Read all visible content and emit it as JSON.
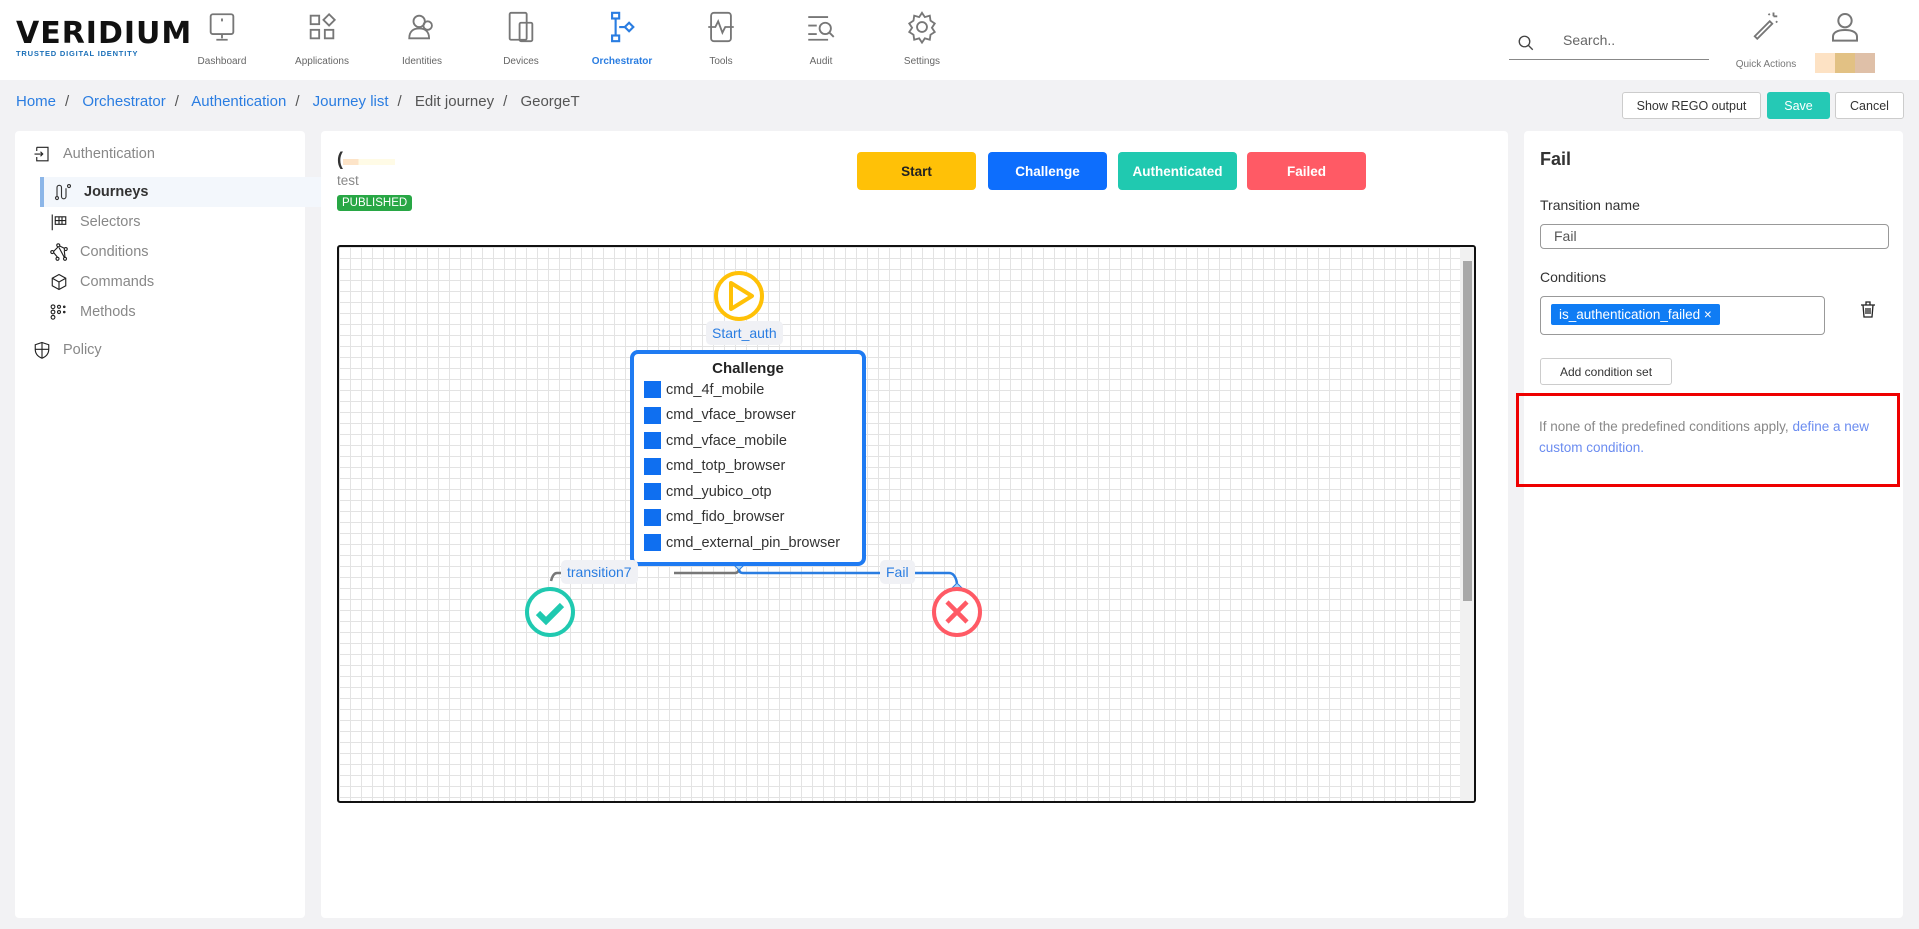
{
  "header": {
    "logo": "VERIDIUM",
    "logo_tagline": "TRUSTED DIGITAL IDENTITY",
    "nav": [
      {
        "label": "Dashboard",
        "icon": "monitor-icon"
      },
      {
        "label": "Applications",
        "icon": "apps-icon"
      },
      {
        "label": "Identities",
        "icon": "users-icon"
      },
      {
        "label": "Devices",
        "icon": "devices-icon"
      },
      {
        "label": "Orchestrator",
        "icon": "orchestrator-icon",
        "active": true
      },
      {
        "label": "Tools",
        "icon": "tools-icon"
      },
      {
        "label": "Audit",
        "icon": "audit-icon"
      },
      {
        "label": "Settings",
        "icon": "gear-icon"
      }
    ],
    "search_placeholder": "Search..",
    "quick_actions": "Quick Actions"
  },
  "breadcrumb": [
    {
      "label": "Home",
      "link": true
    },
    {
      "label": "Orchestrator",
      "link": true
    },
    {
      "label": "Authentication",
      "link": true
    },
    {
      "label": "Journey list",
      "link": true
    },
    {
      "label": "Edit journey",
      "link": false
    },
    {
      "label": "GeorgeT",
      "link": false
    }
  ],
  "actions": {
    "show_rego": "Show REGO output",
    "save": "Save",
    "cancel": "Cancel"
  },
  "sidebar": {
    "section": "Authentication",
    "items": [
      "Journeys",
      "Selectors",
      "Conditions",
      "Commands",
      "Methods"
    ],
    "active": "Journeys",
    "policy": "Policy"
  },
  "journey": {
    "name_initial": "(",
    "description": "test",
    "status": "PUBLISHED"
  },
  "states": [
    {
      "label": "Start",
      "color": "#ffc107"
    },
    {
      "label": "Challenge",
      "color": "#0d6efd"
    },
    {
      "label": "Authenticated",
      "color": "#20c9b0"
    },
    {
      "label": "Failed",
      "color": "#ff5a65"
    }
  ],
  "diagram": {
    "start_transition": "Start_auth",
    "challenge": {
      "title": "Challenge",
      "commands": [
        "cmd_4f_mobile",
        "cmd_vface_browser",
        "cmd_vface_mobile",
        "cmd_totp_browser",
        "cmd_yubico_otp",
        "cmd_fido_browser",
        "cmd_external_pin_browser"
      ]
    },
    "success_transition": "transition7",
    "fail_transition": "Fail"
  },
  "right_panel": {
    "title": "Fail",
    "transition_name_label": "Transition name",
    "transition_name_value": "Fail",
    "conditions_label": "Conditions",
    "condition_chip": "is_authentication_failed",
    "chip_remove": "×",
    "add_condition_set": "Add condition set",
    "hint_text": "If none of the predefined conditions apply, ",
    "hint_link": "define a new custom condition."
  }
}
